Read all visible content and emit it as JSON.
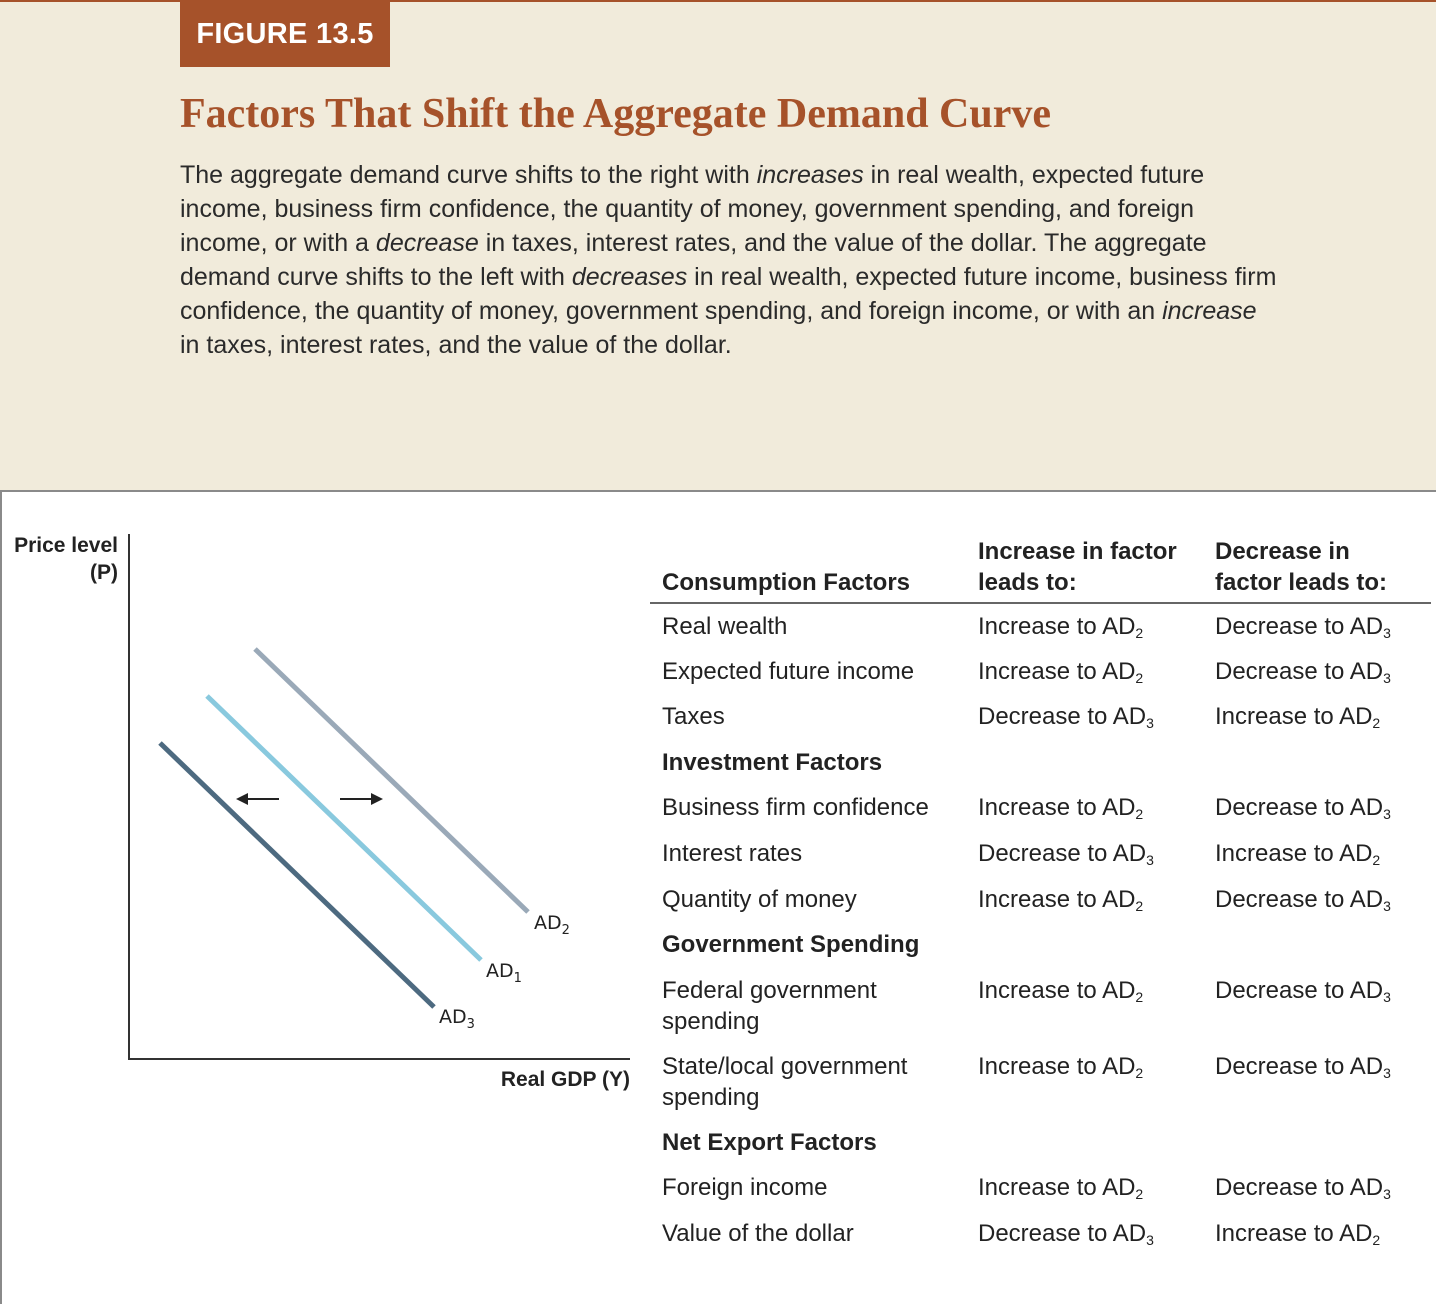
{
  "figure_label": "FIGURE 13.5",
  "title": "Factors That Shift the Aggregate Demand Curve",
  "caption": {
    "p1": "The aggregate demand curve shifts to the right with ",
    "e1": "increases",
    "p2": " in real wealth, expected future income, business firm confidence, the quantity of money, government spending, and foreign income, or with a ",
    "e2": "decrease",
    "p3": " in taxes, interest rates, and the value of the dollar. The aggregate demand curve shifts to the left with ",
    "e3": "decreases",
    "p4": " in real wealth, expected future income, business firm confidence, the quantity of money, government spending, and foreign income, or with an ",
    "e4": "increase",
    "p5": " in taxes, interest rates, and the value of the dollar."
  },
  "graph": {
    "y_label_line1": "Price level",
    "y_label_line2": "(P)",
    "x_label": "Real GDP (Y)",
    "curves": [
      {
        "name": "AD",
        "sub": "2",
        "color": "#9aa9b8"
      },
      {
        "name": "AD",
        "sub": "1",
        "color": "#89c9de"
      },
      {
        "name": "AD",
        "sub": "3",
        "color": "#4d6a80"
      }
    ]
  },
  "table": {
    "headers": {
      "factor": "Consumption Factors",
      "increase_l1": "Increase in factor",
      "increase_l2": "leads to:",
      "decrease_l1": "Decrease in",
      "decrease_l2": "factor leads to:"
    },
    "rows": [
      {
        "label": "Real wealth",
        "inc": "Increase to AD",
        "inc_sub": "2",
        "dec": "Decrease to AD",
        "dec_sub": "3"
      },
      {
        "label": "Expected future income",
        "inc": "Increase to AD",
        "inc_sub": "2",
        "dec": "Decrease to AD",
        "dec_sub": "3"
      },
      {
        "label": "Taxes",
        "inc": "Decrease to AD",
        "inc_sub": "3",
        "dec": "Increase to AD",
        "dec_sub": "2"
      },
      {
        "section": "Investment Factors"
      },
      {
        "label": "Business firm confidence",
        "inc": "Increase to AD",
        "inc_sub": "2",
        "dec": "Decrease to AD",
        "dec_sub": "3"
      },
      {
        "label": "Interest rates",
        "inc": "Decrease to AD",
        "inc_sub": "3",
        "dec": "Increase to AD",
        "dec_sub": "2"
      },
      {
        "label": "Quantity of money",
        "inc": "Increase to AD",
        "inc_sub": "2",
        "dec": "Decrease to AD",
        "dec_sub": "3"
      },
      {
        "section": "Government Spending"
      },
      {
        "label": "Federal government spending",
        "inc": "Increase to AD",
        "inc_sub": "2",
        "dec": "Decrease to AD",
        "dec_sub": "3"
      },
      {
        "label": "State/local government spending",
        "inc": "Increase to AD",
        "inc_sub": "2",
        "dec": "Decrease to AD",
        "dec_sub": "3"
      },
      {
        "section": "Net Export Factors"
      },
      {
        "label": "Foreign income",
        "inc": "Increase to AD",
        "inc_sub": "2",
        "dec": "Decrease to AD",
        "dec_sub": "3"
      },
      {
        "label": "Value of the dollar",
        "inc": "Decrease to AD",
        "inc_sub": "3",
        "dec": "Increase to AD",
        "dec_sub": "2"
      }
    ]
  }
}
